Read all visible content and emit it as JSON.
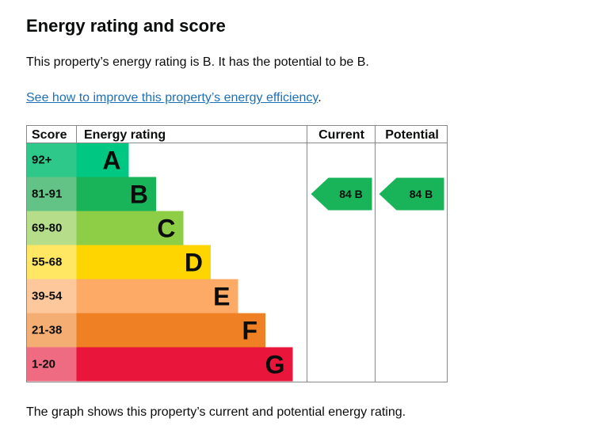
{
  "page": {
    "title": "Energy rating and score",
    "summary": "This property’s energy rating is B. It has the potential to be B.",
    "link_text": "See how to improve this property’s energy efficiency",
    "link_suffix": ".",
    "caption": "The graph shows this property’s current and potential energy rating."
  },
  "chart_data": {
    "type": "bar",
    "headers": {
      "score": "Score",
      "rating": "Energy rating",
      "current": "Current",
      "potential": "Potential"
    },
    "bands": [
      {
        "letter": "A",
        "range": "92+",
        "color": "#00c781",
        "score_bg": "#2ec98a"
      },
      {
        "letter": "B",
        "range": "81-91",
        "color": "#19b459",
        "score_bg": "#63c386"
      },
      {
        "letter": "C",
        "range": "69-80",
        "color": "#8dce46",
        "score_bg": "#b5dd8a"
      },
      {
        "letter": "D",
        "range": "55-68",
        "color": "#ffd500",
        "score_bg": "#ffe663"
      },
      {
        "letter": "E",
        "range": "39-54",
        "color": "#fcaa65",
        "score_bg": "#fdc89c"
      },
      {
        "letter": "F",
        "range": "21-38",
        "color": "#ef8023",
        "score_bg": "#f4ad72"
      },
      {
        "letter": "G",
        "range": "1-20",
        "color": "#e9153b",
        "score_bg": "#ef6b82"
      }
    ],
    "current": {
      "score": 84,
      "band": "B",
      "label": "84  B"
    },
    "potential": {
      "score": 84,
      "band": "B",
      "label": "84  B"
    }
  }
}
